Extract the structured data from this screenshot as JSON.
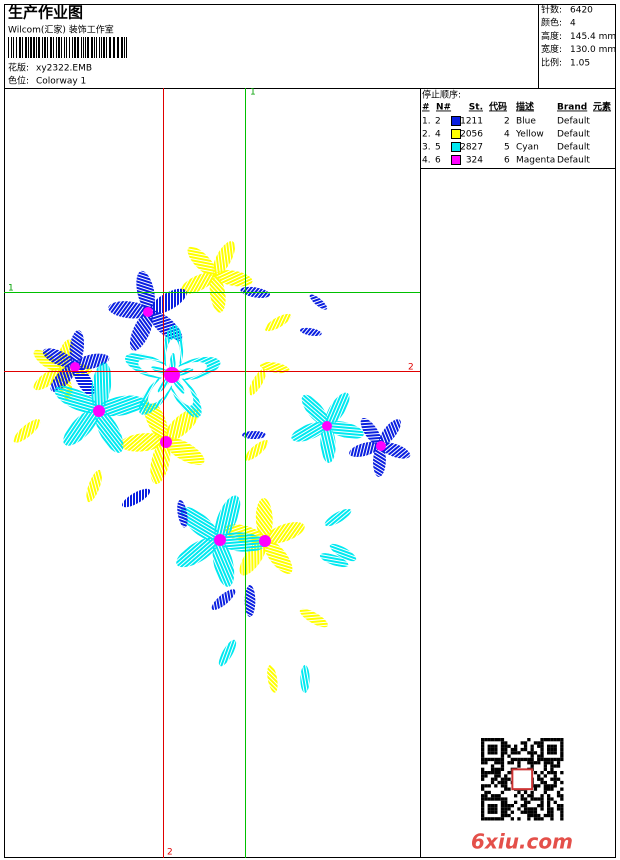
{
  "header": {
    "title": "生产作业图",
    "studio": "Wilcom(汇家) 装饰工作室",
    "design_label": "花版:",
    "design": "xy2322.EMB",
    "colorway_label": "色位:",
    "colorway": "Colorway 1"
  },
  "stats": [
    {
      "label": "针数:",
      "value": "6420"
    },
    {
      "label": "颜色:",
      "value": "4"
    },
    {
      "label": "高度:",
      "value": "145.4 mm"
    },
    {
      "label": "宽度:",
      "value": "130.0 mm"
    },
    {
      "label": "比例:",
      "value": "1.05"
    }
  ],
  "stop_sequence": {
    "title": "停止顺序:",
    "columns": [
      "#",
      "N#",
      "St.",
      "代码",
      "描述",
      "Brand",
      "元素"
    ],
    "rows": [
      {
        "seq": "1.",
        "needle": 2,
        "color": "#0a1fe0",
        "stitches": 1211,
        "code": 2,
        "description": "Blue",
        "brand": "Default"
      },
      {
        "seq": "2.",
        "needle": 4,
        "color": "#ffff00",
        "stitches": 2056,
        "code": 4,
        "description": "Yellow",
        "brand": "Default"
      },
      {
        "seq": "3.",
        "needle": 5,
        "color": "#00e8f0",
        "stitches": 2827,
        "code": 5,
        "description": "Cyan",
        "brand": "Default"
      },
      {
        "seq": "4.",
        "needle": 6,
        "color": "#ff00ff",
        "stitches": 324,
        "code": 6,
        "description": "Magenta",
        "brand": "Default"
      }
    ]
  },
  "guides": {
    "top": "1",
    "left": "1",
    "right": "2",
    "bottom": "2"
  },
  "watermark": "6xiu.com"
}
